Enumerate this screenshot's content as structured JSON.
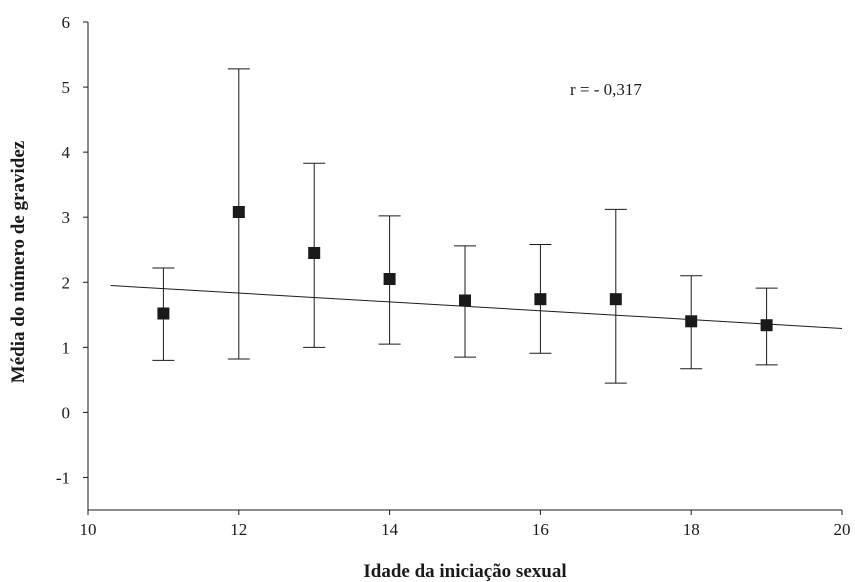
{
  "chart_data": {
    "type": "scatter",
    "title": "",
    "xlabel": "Idade da iniciação sexual",
    "ylabel": "Média do número de gravidez",
    "xlim": [
      10,
      20
    ],
    "ylim": [
      -1.5,
      6
    ],
    "xticks": [
      10,
      12,
      14,
      16,
      18,
      20
    ],
    "yticks": [
      -1,
      0,
      1,
      2,
      3,
      4,
      5,
      6
    ],
    "grid": false,
    "annotation": "r = - 0,317",
    "points": [
      {
        "x": 11,
        "y": 1.52,
        "lower": 0.8,
        "upper": 2.22
      },
      {
        "x": 12,
        "y": 3.08,
        "lower": 0.82,
        "upper": 5.28
      },
      {
        "x": 13,
        "y": 2.45,
        "lower": 1.0,
        "upper": 3.83
      },
      {
        "x": 14,
        "y": 2.05,
        "lower": 1.05,
        "upper": 3.02
      },
      {
        "x": 15,
        "y": 1.72,
        "lower": 0.85,
        "upper": 2.56
      },
      {
        "x": 16,
        "y": 1.74,
        "lower": 0.91,
        "upper": 2.58
      },
      {
        "x": 17,
        "y": 1.74,
        "lower": 0.45,
        "upper": 3.12
      },
      {
        "x": 18,
        "y": 1.4,
        "lower": 0.67,
        "upper": 2.1
      },
      {
        "x": 19,
        "y": 1.34,
        "lower": 0.73,
        "upper": 1.91
      }
    ],
    "trendline": {
      "x": [
        10.3,
        20
      ],
      "y": [
        1.95,
        1.29
      ]
    }
  }
}
